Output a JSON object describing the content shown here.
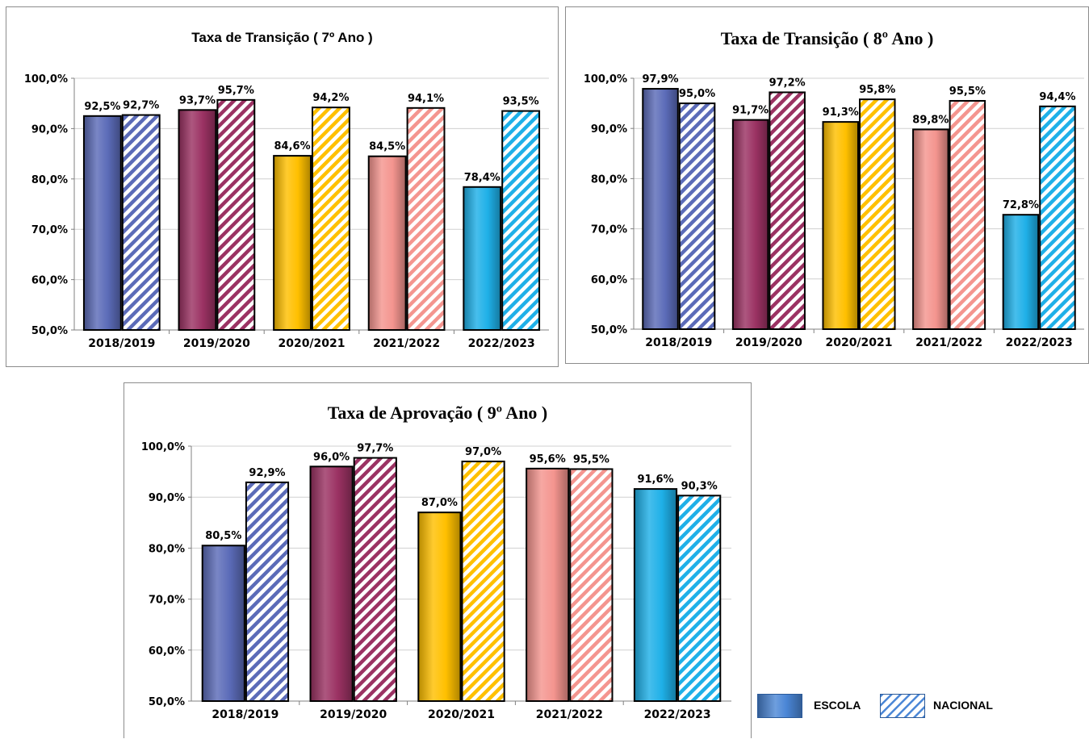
{
  "chart_data": [
    {
      "type": "bar",
      "title": "Taxa de Transição ( 7º Ano )",
      "categories": [
        "2018/2019",
        "2019/2020",
        "2020/2021",
        "2021/2022",
        "2022/2023"
      ],
      "series": [
        {
          "name": "ESCOLA",
          "values": [
            92.5,
            93.7,
            84.6,
            84.5,
            78.4
          ],
          "labels": [
            "92,5%",
            "93,7%",
            "84,6%",
            "84,5%",
            "78,4%"
          ]
        },
        {
          "name": "NACIONAL",
          "values": [
            92.7,
            95.7,
            94.2,
            94.1,
            93.5
          ],
          "labels": [
            "92,7%",
            "95,7%",
            "94,2%",
            "94,1%",
            "93,5%"
          ]
        }
      ],
      "ylim": [
        50,
        100
      ],
      "yticks": [
        "50,0%",
        "60,0%",
        "70,0%",
        "80,0%",
        "90,0%",
        "100,0%"
      ],
      "grid": true
    },
    {
      "type": "bar",
      "title": "Taxa de Transição ( 8º Ano )",
      "categories": [
        "2018/2019",
        "2019/2020",
        "2020/2021",
        "2021/2022",
        "2022/2023"
      ],
      "series": [
        {
          "name": "ESCOLA",
          "values": [
            97.9,
            91.7,
            91.3,
            89.8,
            72.8
          ],
          "labels": [
            "97,9%",
            "91,7%",
            "91,3%",
            "89,8%",
            "72,8%"
          ]
        },
        {
          "name": "NACIONAL",
          "values": [
            95.0,
            97.2,
            95.8,
            95.5,
            94.4
          ],
          "labels": [
            "95,0%",
            "97,2%",
            "95,8%",
            "95,5%",
            "94,4%"
          ]
        }
      ],
      "ylim": [
        50,
        100
      ],
      "yticks": [
        "50,0%",
        "60,0%",
        "70,0%",
        "80,0%",
        "90,0%",
        "100,0%"
      ],
      "grid": true
    },
    {
      "type": "bar",
      "title": "Taxa de Aprovação ( 9º Ano )",
      "categories": [
        "2018/2019",
        "2019/2020",
        "2020/2021",
        "2021/2022",
        "2022/2023"
      ],
      "series": [
        {
          "name": "ESCOLA",
          "values": [
            80.5,
            96.0,
            87.0,
            95.6,
            91.6
          ],
          "labels": [
            "80,5%",
            "96,0%",
            "87,0%",
            "95,6%",
            "91,6%"
          ]
        },
        {
          "name": "NACIONAL",
          "values": [
            92.9,
            97.7,
            97.0,
            95.5,
            90.3
          ],
          "labels": [
            "92,9%",
            "97,7%",
            "97,0%",
            "95,5%",
            "90,3%"
          ]
        }
      ],
      "ylim": [
        50,
        100
      ],
      "yticks": [
        "50,0%",
        "60,0%",
        "70,0%",
        "80,0%",
        "90,0%",
        "100,0%"
      ],
      "grid": true
    }
  ],
  "category_colors": [
    "#5b6bb8",
    "#9b3263",
    "#ffc000",
    "#f4958f",
    "#1fb0e8"
  ],
  "legend": {
    "escola_label": "ESCOLA",
    "nacional_label": "NACIONAL",
    "escola_color": "#4a86d6",
    "nacional_color": "#4a86d6",
    "position": "bottom-right"
  }
}
